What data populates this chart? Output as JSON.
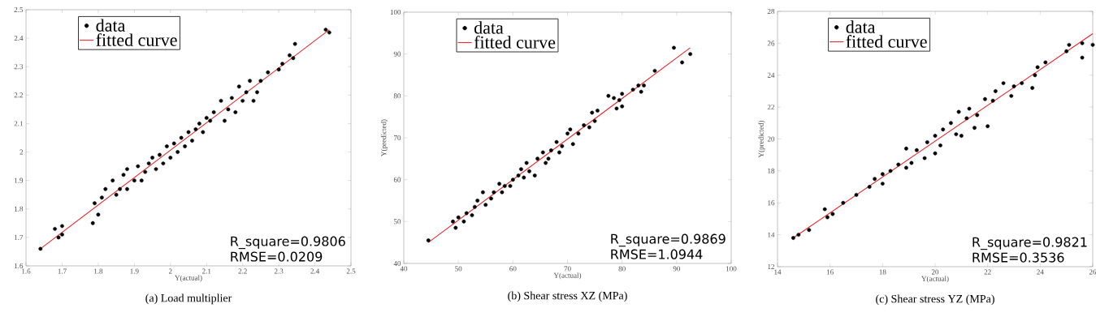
{
  "chart_data": [
    {
      "type": "scatter",
      "title": "(a) Load multiplier",
      "xlabel": "Y(actual)",
      "xlim": [
        1.6,
        2.5
      ],
      "ylim": [
        1.6,
        2.5
      ],
      "xticks": [
        1.6,
        1.7,
        1.8,
        1.9,
        2,
        2.1,
        2.2,
        2.3,
        2.4,
        2.5
      ],
      "yticks": [
        1.6,
        1.7,
        1.8,
        1.9,
        2,
        2.1,
        2.2,
        2.3,
        2.4,
        2.5
      ],
      "legend": "top left",
      "annotations": [
        "R_square=0.9806",
        "RMSE=0.0209"
      ],
      "series": [
        {
          "name": "data",
          "color": "#000000",
          "marker": "circle",
          "x": [
            1.64,
            1.68,
            1.69,
            1.7,
            1.7,
            1.785,
            1.79,
            1.8,
            1.81,
            1.82,
            1.84,
            1.85,
            1.86,
            1.87,
            1.88,
            1.88,
            1.9,
            1.91,
            1.92,
            1.93,
            1.94,
            1.95,
            1.96,
            1.97,
            1.98,
            1.99,
            2.0,
            2.01,
            2.02,
            2.03,
            2.04,
            2.05,
            2.06,
            2.07,
            2.08,
            2.09,
            2.1,
            2.11,
            2.12,
            2.14,
            2.15,
            2.16,
            2.17,
            2.18,
            2.19,
            2.2,
            2.21,
            2.22,
            2.23,
            2.24,
            2.25,
            2.27,
            2.3,
            2.31,
            2.33,
            2.34,
            2.345,
            2.43,
            2.44
          ],
          "values": [
            1.66,
            1.73,
            1.7,
            1.71,
            1.74,
            1.75,
            1.82,
            1.78,
            1.84,
            1.87,
            1.9,
            1.85,
            1.87,
            1.92,
            1.94,
            1.87,
            1.9,
            1.95,
            1.9,
            1.93,
            1.96,
            1.98,
            1.94,
            1.99,
            1.96,
            2.02,
            1.98,
            2.03,
            2.0,
            2.05,
            2.02,
            2.07,
            2.04,
            2.08,
            2.1,
            2.07,
            2.12,
            2.11,
            2.14,
            2.18,
            2.11,
            2.15,
            2.19,
            2.14,
            2.23,
            2.18,
            2.21,
            2.25,
            2.18,
            2.21,
            2.25,
            2.28,
            2.29,
            2.31,
            2.34,
            2.33,
            2.38,
            2.43,
            2.42
          ]
        },
        {
          "name": "fitted curve",
          "type": "line",
          "color": "#e8282d",
          "marker": "none",
          "line_style": "solid",
          "x": [
            1.64,
            2.44
          ],
          "values": [
            1.66,
            2.43
          ]
        }
      ]
    },
    {
      "type": "scatter",
      "title": "(b) Shear stress XZ (MPa)",
      "xlabel": "Y(actual)",
      "ylabel": "Y(predicted)",
      "xlim": [
        40,
        100
      ],
      "ylim": [
        40,
        100
      ],
      "xticks": [
        40,
        50,
        60,
        70,
        80,
        90,
        100
      ],
      "yticks": [
        40,
        50,
        60,
        70,
        80,
        90,
        100
      ],
      "legend": "top left",
      "annotations": [
        "R_square=0.9869",
        "RMSE=1.0944"
      ],
      "series": [
        {
          "name": "data",
          "color": "#000000",
          "marker": "circle",
          "x": [
            44.5,
            49,
            49.5,
            50,
            51,
            51.5,
            52.5,
            53,
            53.5,
            54.5,
            55,
            56,
            56.5,
            57.5,
            58,
            58.5,
            59.5,
            60,
            61,
            61.5,
            62,
            62.5,
            63,
            64,
            64.5,
            65.5,
            66,
            66.5,
            67,
            68,
            68.5,
            69,
            70,
            70.5,
            71,
            72,
            73,
            74,
            74.5,
            75,
            75.5,
            77.5,
            78.5,
            79,
            79.5,
            80,
            80,
            82,
            83,
            83.5,
            84,
            86,
            89.5,
            91,
            92.5
          ],
          "values": [
            45.5,
            50,
            48.5,
            51,
            50,
            52,
            51.5,
            53.5,
            55,
            57,
            54,
            55.5,
            57,
            59,
            57,
            58.5,
            58.5,
            60,
            61,
            62.5,
            60.5,
            64,
            62,
            61,
            65,
            66.5,
            64,
            65,
            67,
            69,
            66.5,
            68,
            71,
            72,
            68.5,
            71,
            73,
            72.5,
            76,
            74,
            76.5,
            80,
            79.5,
            77,
            79,
            80.5,
            77.5,
            81.5,
            82.5,
            81,
            82.5,
            86,
            91.5,
            88,
            90
          ]
        },
        {
          "name": "fitted curve",
          "type": "line",
          "color": "#e8282d",
          "marker": "none",
          "line_style": "solid",
          "x": [
            44.5,
            92.5
          ],
          "values": [
            45,
            91.5
          ]
        }
      ]
    },
    {
      "type": "scatter",
      "title": "(c) Shear stress YZ (MPa)",
      "xlabel": "Y(actual)",
      "ylabel": "Y(predicted)",
      "xlim": [
        14,
        26
      ],
      "ylim": [
        12,
        28
      ],
      "xticks": [
        14,
        16,
        18,
        20,
        22,
        24,
        26
      ],
      "yticks": [
        12,
        14,
        16,
        18,
        20,
        22,
        24,
        26,
        28
      ],
      "legend": "top left",
      "annotations": [
        "R_square=0.9821",
        "RMSE=0.3536"
      ],
      "series": [
        {
          "name": "data",
          "color": "#000000",
          "marker": "circle",
          "x": [
            14.6,
            14.8,
            15.2,
            15.8,
            15.9,
            16.1,
            16.5,
            17,
            17.5,
            17.7,
            18,
            18,
            18.3,
            18.6,
            18.9,
            18.9,
            19.1,
            19.3,
            19.6,
            19.7,
            20,
            20,
            20.2,
            20.3,
            20.6,
            20.8,
            20.9,
            21,
            21.2,
            21.3,
            21.5,
            21.6,
            21.9,
            22,
            22.2,
            22.3,
            22.6,
            22.9,
            23,
            23.3,
            23.7,
            23.8,
            23.9,
            24.2,
            25,
            25.1,
            25.6,
            25.6,
            26
          ],
          "values": [
            13.8,
            14,
            14.3,
            15.6,
            15.1,
            15.3,
            16,
            16.5,
            17,
            17.5,
            17.2,
            17.8,
            18,
            18.4,
            18.2,
            19.4,
            18.5,
            19.3,
            18.8,
            19.8,
            19.1,
            20.2,
            19.6,
            20.6,
            21,
            20.3,
            21.7,
            20.2,
            21.3,
            21.9,
            20.7,
            21.5,
            22.5,
            20.8,
            22.4,
            23,
            23.5,
            22.7,
            23.3,
            23.5,
            23.2,
            24,
            24.5,
            24.8,
            25.5,
            25.9,
            25.1,
            26,
            25.9
          ]
        },
        {
          "name": "fitted curve",
          "type": "line",
          "color": "#e8282d",
          "marker": "none",
          "line_style": "solid",
          "x": [
            14.6,
            26
          ],
          "values": [
            13.8,
            26.6
          ]
        }
      ]
    }
  ]
}
